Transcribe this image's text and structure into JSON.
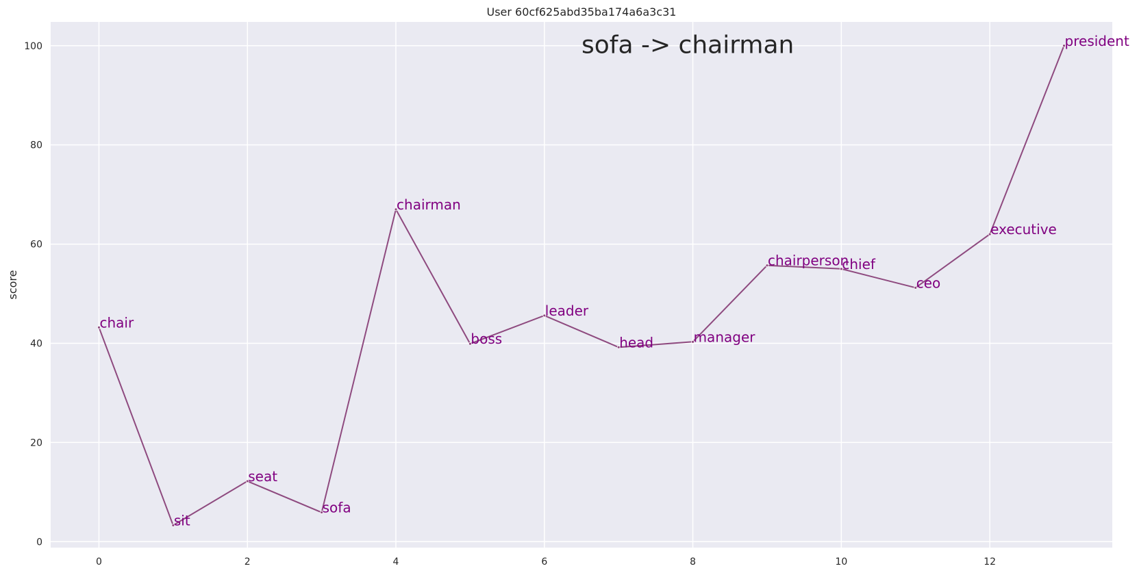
{
  "chart_data": {
    "type": "line",
    "title": "User 60cf625abd35ba174a6a3c31",
    "annotation": "sofa -> chairman",
    "xlabel": "",
    "ylabel": "score",
    "x": [
      0,
      1,
      2,
      3,
      4,
      5,
      6,
      7,
      8,
      9,
      10,
      11,
      12,
      13
    ],
    "y": [
      43.2,
      3.3,
      12.2,
      5.9,
      67.0,
      39.9,
      45.6,
      39.2,
      40.3,
      55.7,
      55.0,
      51.2,
      62.0,
      100.0
    ],
    "point_labels": [
      "chair",
      "sit",
      "seat",
      "sofa",
      "chairman",
      "boss",
      "leader",
      "head",
      "manager",
      "chairperson",
      "chief",
      "ceo",
      "executive",
      "president"
    ],
    "xlim": [
      -0.65,
      13.65
    ],
    "ylim": [
      -1.2,
      104.8
    ],
    "xticks": [
      0,
      2,
      4,
      6,
      8,
      10,
      12
    ],
    "yticks": [
      0,
      20,
      40,
      60,
      80,
      100
    ],
    "grid": true,
    "line_color": "#8e4a7f",
    "label_color": "#800080",
    "background_color": "#eaeaf2",
    "grid_color": "#ffffff"
  }
}
